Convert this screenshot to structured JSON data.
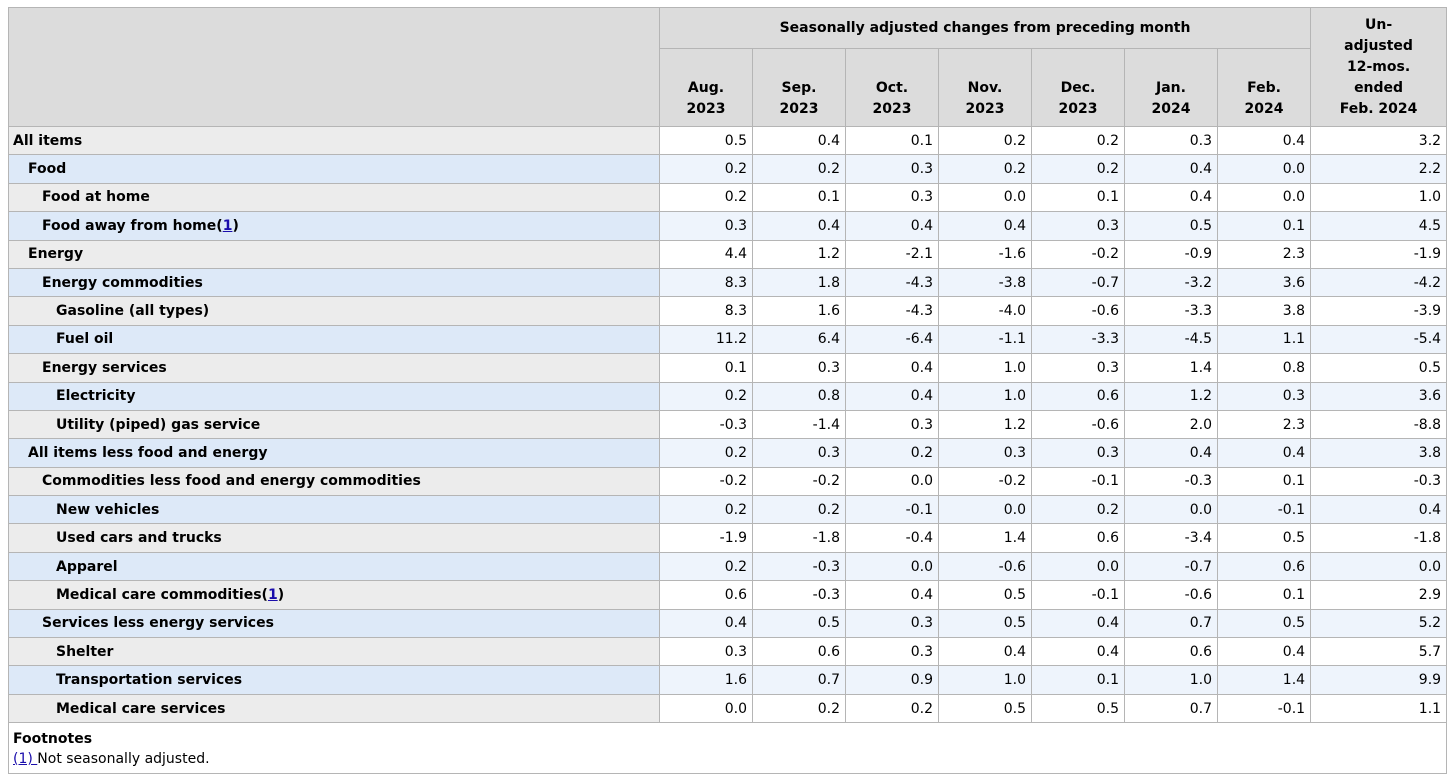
{
  "header": {
    "group_title": "Seasonally adjusted changes from preceding month",
    "months": [
      {
        "m": "Aug.",
        "y": "2023"
      },
      {
        "m": "Sep.",
        "y": "2023"
      },
      {
        "m": "Oct.",
        "y": "2023"
      },
      {
        "m": "Nov.",
        "y": "2023"
      },
      {
        "m": "Dec.",
        "y": "2023"
      },
      {
        "m": "Jan.",
        "y": "2024"
      },
      {
        "m": "Feb.",
        "y": "2024"
      }
    ],
    "unadjusted": [
      "Un-",
      "adjusted",
      "12-mos.",
      "ended",
      "Feb. 2024"
    ]
  },
  "rows": [
    {
      "label": "All items",
      "indent": 0,
      "fn": "",
      "values": [
        "0.5",
        "0.4",
        "0.1",
        "0.2",
        "0.2",
        "0.3",
        "0.4",
        "3.2"
      ]
    },
    {
      "label": "Food",
      "indent": 1,
      "fn": "",
      "values": [
        "0.2",
        "0.2",
        "0.3",
        "0.2",
        "0.2",
        "0.4",
        "0.0",
        "2.2"
      ]
    },
    {
      "label": "Food at home",
      "indent": 2,
      "fn": "",
      "values": [
        "0.2",
        "0.1",
        "0.3",
        "0.0",
        "0.1",
        "0.4",
        "0.0",
        "1.0"
      ]
    },
    {
      "label": "Food away from home",
      "indent": 2,
      "fn": "1",
      "values": [
        "0.3",
        "0.4",
        "0.4",
        "0.4",
        "0.3",
        "0.5",
        "0.1",
        "4.5"
      ]
    },
    {
      "label": "Energy",
      "indent": 1,
      "fn": "",
      "values": [
        "4.4",
        "1.2",
        "-2.1",
        "-1.6",
        "-0.2",
        "-0.9",
        "2.3",
        "-1.9"
      ]
    },
    {
      "label": "Energy commodities",
      "indent": 2,
      "fn": "",
      "values": [
        "8.3",
        "1.8",
        "-4.3",
        "-3.8",
        "-0.7",
        "-3.2",
        "3.6",
        "-4.2"
      ]
    },
    {
      "label": "Gasoline (all types)",
      "indent": 3,
      "fn": "",
      "values": [
        "8.3",
        "1.6",
        "-4.3",
        "-4.0",
        "-0.6",
        "-3.3",
        "3.8",
        "-3.9"
      ]
    },
    {
      "label": "Fuel oil",
      "indent": 3,
      "fn": "",
      "values": [
        "11.2",
        "6.4",
        "-6.4",
        "-1.1",
        "-3.3",
        "-4.5",
        "1.1",
        "-5.4"
      ]
    },
    {
      "label": "Energy services",
      "indent": 2,
      "fn": "",
      "values": [
        "0.1",
        "0.3",
        "0.4",
        "1.0",
        "0.3",
        "1.4",
        "0.8",
        "0.5"
      ]
    },
    {
      "label": "Electricity",
      "indent": 3,
      "fn": "",
      "values": [
        "0.2",
        "0.8",
        "0.4",
        "1.0",
        "0.6",
        "1.2",
        "0.3",
        "3.6"
      ]
    },
    {
      "label": "Utility (piped) gas service",
      "indent": 3,
      "fn": "",
      "values": [
        "-0.3",
        "-1.4",
        "0.3",
        "1.2",
        "-0.6",
        "2.0",
        "2.3",
        "-8.8"
      ]
    },
    {
      "label": "All items less food and energy",
      "indent": 1,
      "fn": "",
      "values": [
        "0.2",
        "0.3",
        "0.2",
        "0.3",
        "0.3",
        "0.4",
        "0.4",
        "3.8"
      ]
    },
    {
      "label": "Commodities less food and energy commodities",
      "indent": 2,
      "fn": "",
      "values": [
        "-0.2",
        "-0.2",
        "0.0",
        "-0.2",
        "-0.1",
        "-0.3",
        "0.1",
        "-0.3"
      ]
    },
    {
      "label": "New vehicles",
      "indent": 3,
      "fn": "",
      "values": [
        "0.2",
        "0.2",
        "-0.1",
        "0.0",
        "0.2",
        "0.0",
        "-0.1",
        "0.4"
      ]
    },
    {
      "label": "Used cars and trucks",
      "indent": 3,
      "fn": "",
      "values": [
        "-1.9",
        "-1.8",
        "-0.4",
        "1.4",
        "0.6",
        "-3.4",
        "0.5",
        "-1.8"
      ]
    },
    {
      "label": "Apparel",
      "indent": 3,
      "fn": "",
      "values": [
        "0.2",
        "-0.3",
        "0.0",
        "-0.6",
        "0.0",
        "-0.7",
        "0.6",
        "0.0"
      ]
    },
    {
      "label": "Medical care commodities",
      "indent": 3,
      "fn": "1",
      "values": [
        "0.6",
        "-0.3",
        "0.4",
        "0.5",
        "-0.1",
        "-0.6",
        "0.1",
        "2.9"
      ]
    },
    {
      "label": "Services less energy services",
      "indent": 2,
      "fn": "",
      "values": [
        "0.4",
        "0.5",
        "0.3",
        "0.5",
        "0.4",
        "0.7",
        "0.5",
        "5.2"
      ]
    },
    {
      "label": "Shelter",
      "indent": 3,
      "fn": "",
      "values": [
        "0.3",
        "0.6",
        "0.3",
        "0.4",
        "0.4",
        "0.6",
        "0.4",
        "5.7"
      ]
    },
    {
      "label": "Transportation services",
      "indent": 3,
      "fn": "",
      "values": [
        "1.6",
        "0.7",
        "0.9",
        "1.0",
        "0.1",
        "1.0",
        "1.4",
        "9.9"
      ]
    },
    {
      "label": "Medical care services",
      "indent": 3,
      "fn": "",
      "values": [
        "0.0",
        "0.2",
        "0.2",
        "0.5",
        "0.5",
        "0.7",
        "-0.1",
        "1.1"
      ]
    }
  ],
  "footnotes": {
    "title": "Footnotes",
    "items": [
      {
        "ref": "(1) ",
        "text": "Not seasonally adjusted."
      }
    ]
  }
}
